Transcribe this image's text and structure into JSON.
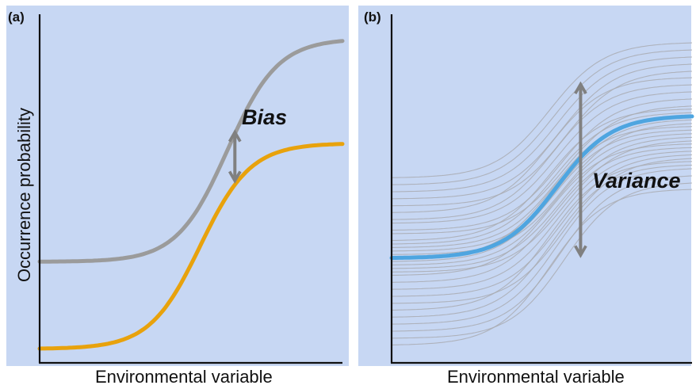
{
  "panels": [
    {
      "letter": "(a)",
      "xlabel": "Environmental variable",
      "annotation": "Bias",
      "curves": [
        {
          "color": "#9b9b9b",
          "low": 0.29,
          "high": 0.93,
          "midpoint": 0.62,
          "steepness": 12
        },
        {
          "color": "#e8a20c",
          "low": 0.04,
          "high": 0.63,
          "midpoint": 0.53,
          "steepness": 12
        }
      ],
      "arrow_at": 0.65
    },
    {
      "letter": "(b)",
      "xlabel": "Environmental variable",
      "annotation": "Variance",
      "mean_curve": {
        "color": "#4ea5e0",
        "low": 0.3,
        "high": 0.71,
        "midpoint": 0.55,
        "steepness": 11
      },
      "ensemble_color": "#a9acb2",
      "ensemble_lows": [
        0.53,
        0.51,
        0.49,
        0.47,
        0.45,
        0.43,
        0.41,
        0.4,
        0.38,
        0.37,
        0.35,
        0.34,
        0.33,
        0.32,
        0.31,
        0.3,
        0.29,
        0.28,
        0.27,
        0.26,
        0.25,
        0.23,
        0.21,
        0.19,
        0.17,
        0.15,
        0.13,
        0.11,
        0.09,
        0.07,
        0.05
      ],
      "ensemble_highs": [
        0.92,
        0.9,
        0.88,
        0.86,
        0.84,
        0.82,
        0.8,
        0.78,
        0.76,
        0.74,
        0.73,
        0.72,
        0.71,
        0.7,
        0.69,
        0.68,
        0.67,
        0.66,
        0.65,
        0.64,
        0.63,
        0.62,
        0.61,
        0.6,
        0.59,
        0.58,
        0.57,
        0.56,
        0.54,
        0.52,
        0.5
      ],
      "arrow_at": 0.6
    }
  ],
  "ylabel": "Occurrence probability",
  "axis_color": "#111111",
  "arrow_color": "#808080"
}
